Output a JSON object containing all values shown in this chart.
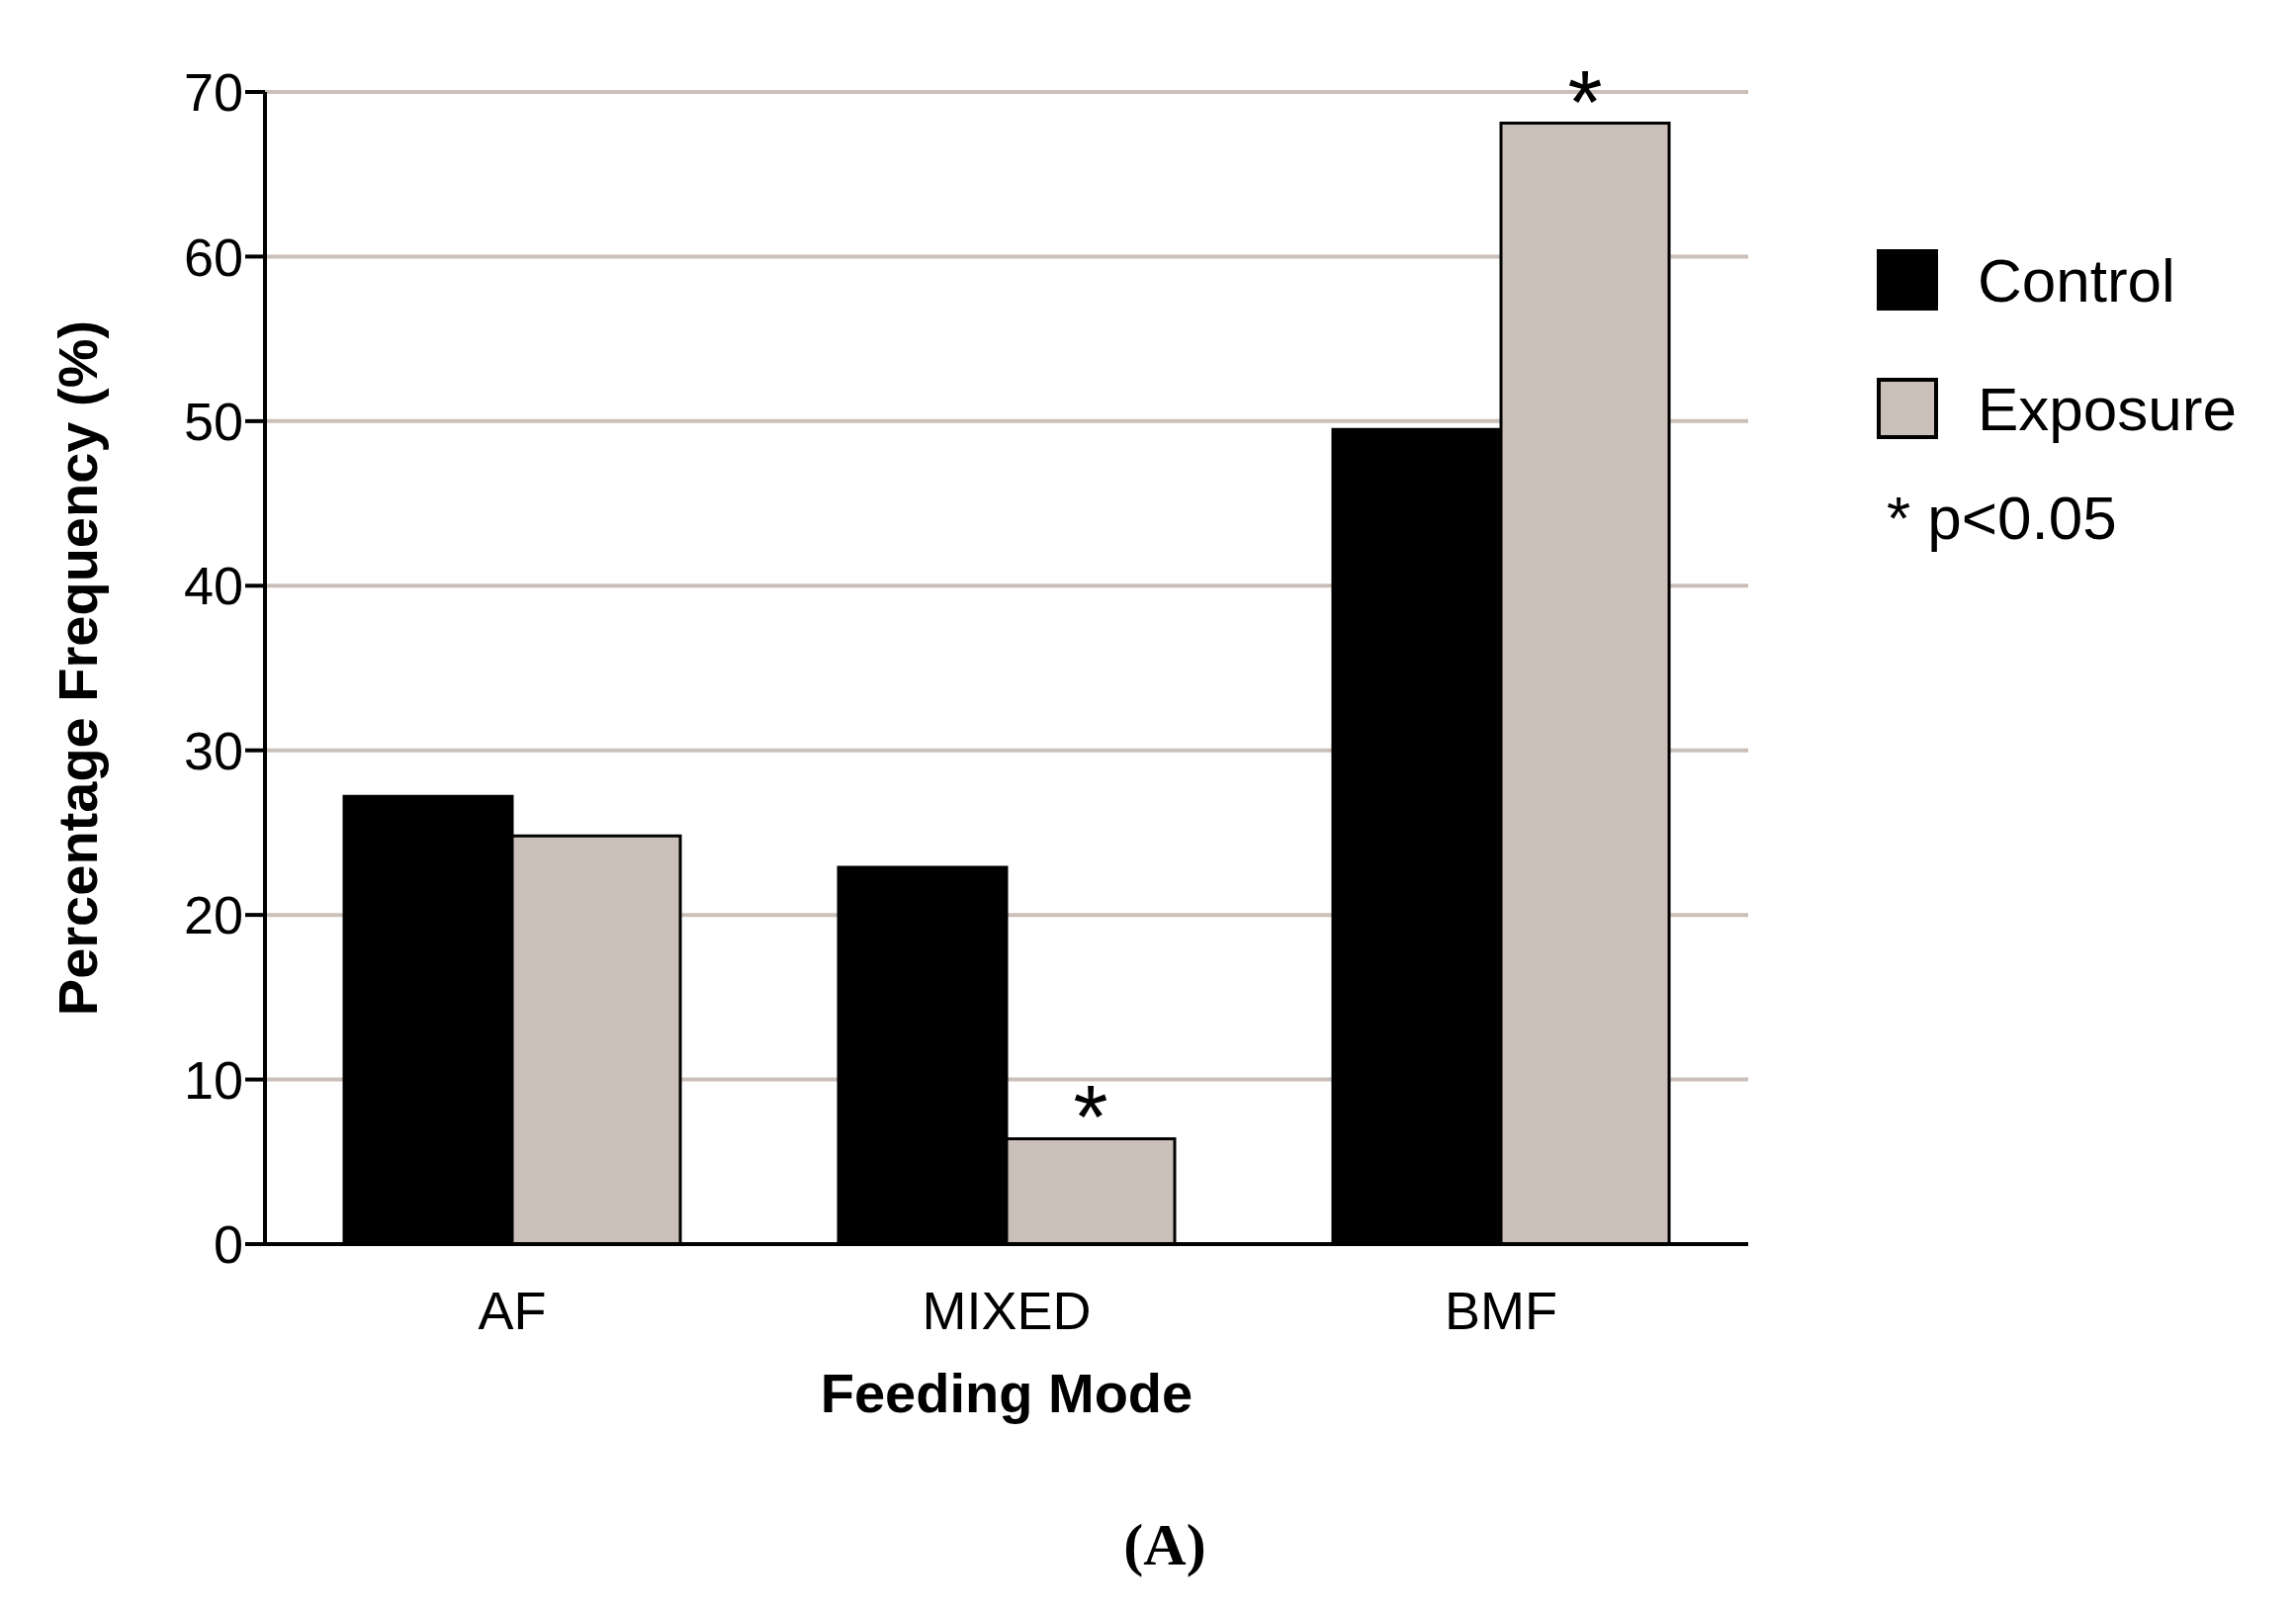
{
  "chart_data": {
    "type": "bar",
    "xlabel": "Feeding Mode",
    "ylabel": "Percentage Frequency (%)",
    "categories": [
      "AF",
      "MIXED",
      "BMF"
    ],
    "series": [
      {
        "name": "Control",
        "color": "#000000",
        "values": [
          27.2,
          22.9,
          49.5
        ]
      },
      {
        "name": "Exposure",
        "color": "#cbc0b9",
        "values": [
          24.8,
          6.4,
          68.1
        ]
      }
    ],
    "ylim": [
      0,
      70
    ],
    "yticks": [
      0,
      10,
      20,
      30,
      40,
      50,
      60,
      70
    ],
    "grid": "y",
    "legend": "right",
    "annotations": [
      {
        "text": "*",
        "x": "MIXED",
        "y": 6.4
      },
      {
        "text": "*",
        "x": "BMF",
        "y": 68.1
      },
      "* p<0.05",
      "(A)"
    ]
  }
}
